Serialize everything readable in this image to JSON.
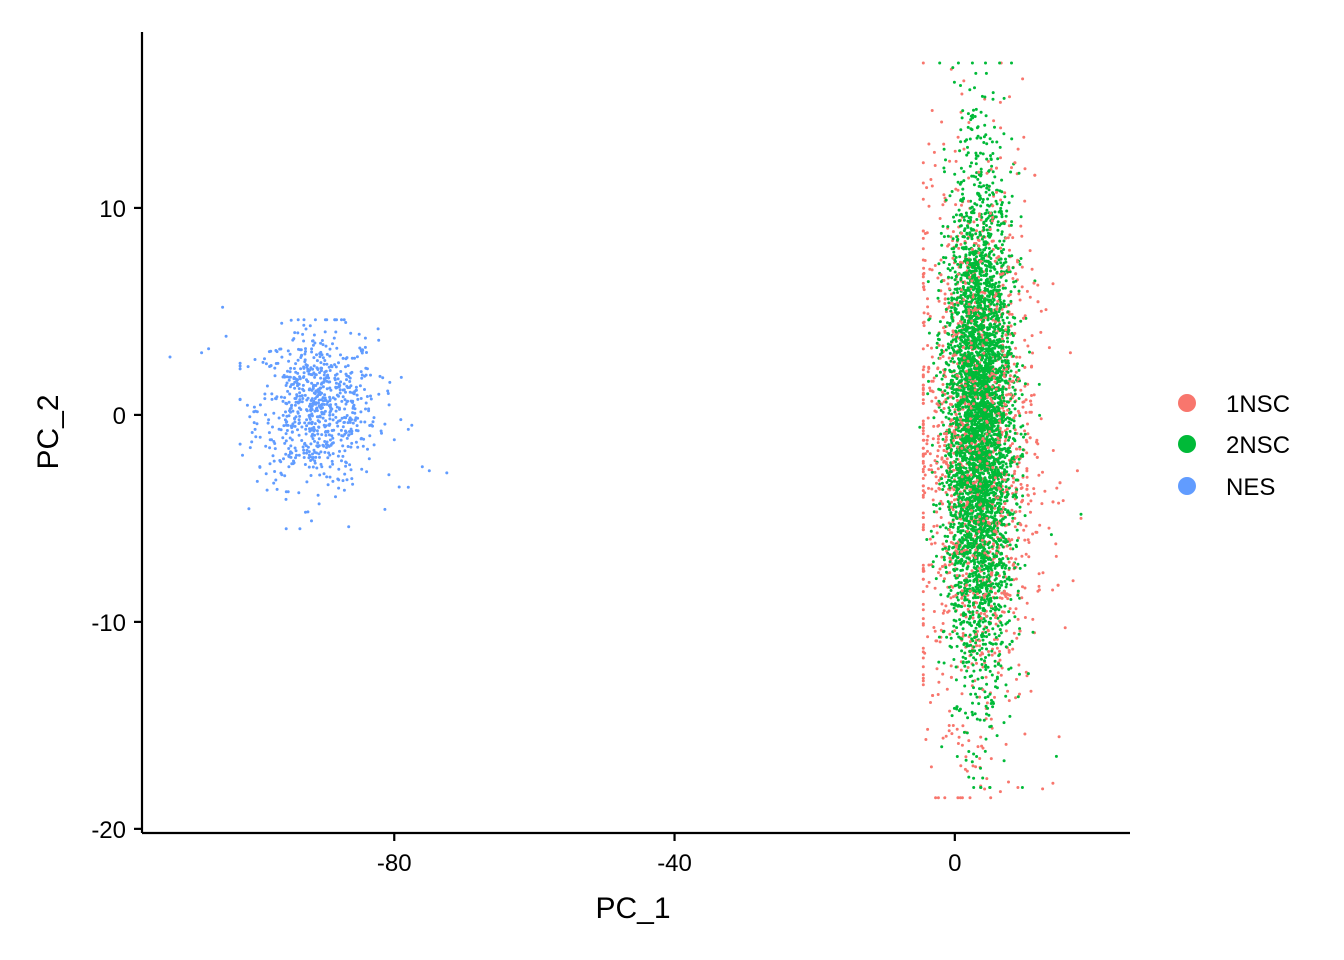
{
  "chart_data": {
    "type": "scatter",
    "title": "",
    "xlabel": "PC_1",
    "ylabel": "PC_2",
    "xlim": [
      -116,
      25
    ],
    "ylim": [
      -20.2,
      18.5
    ],
    "x_ticks": [
      -80,
      -40,
      0
    ],
    "x_tick_labels": [
      "-80",
      "-40",
      "0"
    ],
    "y_ticks": [
      10,
      0,
      -10,
      -20
    ],
    "y_tick_labels": [
      "10",
      "0",
      "-10",
      "-20"
    ],
    "grid": false,
    "legend_position": "right",
    "series": [
      {
        "name": "1NSC",
        "color": "#F8766D",
        "cluster": {
          "x_mean": 3,
          "x_sd": 4.2,
          "y_mean": -1.5,
          "y_sd": 6.5,
          "x_range": [
            -4.5,
            18
          ],
          "y_range": [
            -18.5,
            17
          ],
          "count": 1500
        },
        "outliers": [
          {
            "x": -0.5,
            "y": 16.7
          },
          {
            "x": 6.5,
            "y": 15.1
          },
          {
            "x": 14,
            "y": -17.8
          },
          {
            "x": 6.5,
            "y": -18.2
          },
          {
            "x": -3.5,
            "y": -6
          },
          {
            "x": 18,
            "y": -5
          },
          {
            "x": 17.5,
            "y": -2.7
          },
          {
            "x": 16.5,
            "y": 3
          },
          {
            "x": 9,
            "y": -18
          }
        ]
      },
      {
        "name": "2NSC",
        "color": "#00BA38",
        "cluster": {
          "x_mean": 3.5,
          "x_sd": 2.4,
          "y_mean": -0.5,
          "y_sd": 5.8,
          "x_range": [
            -5,
            19
          ],
          "y_range": [
            -18,
            17
          ],
          "count": 4200
        },
        "outliers": [
          {
            "x": 3,
            "y": 16.5
          },
          {
            "x": 4.5,
            "y": 16.5
          },
          {
            "x": -5,
            "y": -0.6
          },
          {
            "x": 18,
            "y": -4.8
          },
          {
            "x": 14.5,
            "y": -16.5
          },
          {
            "x": 2,
            "y": -17.5
          },
          {
            "x": 10.5,
            "y": -12.5
          }
        ]
      },
      {
        "name": "NES",
        "color": "#619CFF",
        "cluster": {
          "x_mean": -91,
          "x_sd": 4.3,
          "y_mean": 0.3,
          "y_sd": 1.9,
          "x_range": [
            -102,
            -79
          ],
          "y_range": [
            -5.5,
            4.6
          ],
          "count": 780
        },
        "outliers": [
          {
            "x": -112,
            "y": 2.8
          },
          {
            "x": -104.5,
            "y": 5.2
          },
          {
            "x": -107.5,
            "y": 3
          },
          {
            "x": -106.5,
            "y": 3.2
          },
          {
            "x": -104,
            "y": 3.8
          },
          {
            "x": -78,
            "y": -3.5
          },
          {
            "x": -76,
            "y": -2.5
          },
          {
            "x": -75,
            "y": -2.7
          },
          {
            "x": -72.5,
            "y": -2.8
          },
          {
            "x": -77.5,
            "y": -0.5
          },
          {
            "x": -78,
            "y": -0.7
          },
          {
            "x": -86.5,
            "y": -5.4
          },
          {
            "x": -80,
            "y": -1.2
          },
          {
            "x": -85,
            "y": 3.9
          },
          {
            "x": -88.5,
            "y": 4.6
          }
        ]
      }
    ]
  }
}
